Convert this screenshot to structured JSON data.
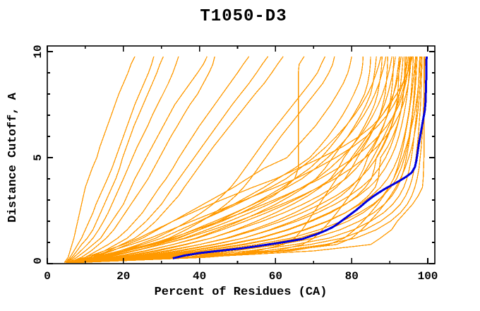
{
  "chart_data": {
    "type": "line",
    "title": "T1050-D3",
    "xlabel": "Percent of Residues (CA)",
    "ylabel": "Distance Cutoff, A",
    "xlim": [
      0,
      101.8
    ],
    "ylim": [
      0,
      10.27
    ],
    "grid": false,
    "legend": "none",
    "x_major_ticks": [
      0,
      20,
      40,
      60,
      80,
      100
    ],
    "x_minor_ticks": [
      10,
      30,
      50,
      70,
      90
    ],
    "y_major_ticks": [
      0,
      5,
      10
    ],
    "y_minor_ticks": [
      1,
      2,
      3,
      4,
      6,
      7,
      8,
      9
    ],
    "colors": {
      "model": "#FF9900",
      "highlight": "#0000DD",
      "frame": "#000000",
      "background": "#FFFFFF"
    },
    "series_semantics": {
      "orange_curves": "individual predicted models: percent of CA residues within distance cutoff",
      "blue_curve": "highlighted model curve"
    },
    "cutoffs": [
      0.05,
      0.3,
      0.6,
      0.9,
      1.2,
      1.6,
      2.0,
      2.4,
      2.8,
      3.2,
      3.6,
      4.0,
      4.5,
      5.0,
      5.5,
      6.0,
      6.5,
      7.0,
      7.5,
      8.0,
      8.5,
      9.0,
      9.4,
      9.77
    ],
    "orange_curves": [
      [
        4.5,
        5.5,
        6,
        6.5,
        7,
        7.5,
        8,
        8.5,
        9,
        9.5,
        10,
        10.8,
        11.8,
        13,
        13.8,
        14.8,
        15.8,
        16.8,
        17.8,
        18.8,
        20,
        21.2,
        22,
        23
      ],
      [
        4.8,
        6,
        7,
        8,
        9,
        10,
        11,
        12,
        12.8,
        13.8,
        14.8,
        15.8,
        17,
        18,
        19,
        20,
        21,
        22,
        23,
        24.2,
        25.4,
        26.6,
        27.4,
        28
      ],
      [
        5,
        6.5,
        7.8,
        9,
        10.5,
        12,
        13,
        14,
        15,
        16,
        17,
        18,
        19,
        19.8,
        20.8,
        21.8,
        22.8,
        24,
        25.2,
        26.4,
        27.6,
        28.8,
        29.6,
        30.5
      ],
      [
        5.2,
        7,
        8.8,
        10.5,
        12,
        13.5,
        14.8,
        16,
        17,
        18,
        19,
        20,
        21.2,
        22.4,
        23.6,
        25,
        26.4,
        27.6,
        29,
        30.4,
        31.8,
        33,
        33.8,
        34.5
      ],
      [
        5.4,
        7.8,
        10,
        12,
        14,
        15.5,
        17,
        18.5,
        20,
        21,
        22,
        23,
        24.5,
        26,
        27.5,
        29,
        30.5,
        32,
        33.5,
        35.5,
        37.5,
        39.5,
        41,
        42
      ],
      [
        5.6,
        9,
        11.5,
        13.5,
        15.5,
        17.5,
        19,
        20.5,
        22,
        23.5,
        25,
        26.5,
        28,
        29.5,
        31,
        32.5,
        34.2,
        35.8,
        37.5,
        39.5,
        41,
        42.5,
        43.5,
        44
      ],
      [
        5.8,
        10,
        13,
        16,
        18.5,
        21,
        23,
        25,
        26.5,
        28,
        29.5,
        31.2,
        33,
        34.6,
        36.4,
        38.2,
        40,
        42,
        44,
        46,
        48,
        50,
        51.5,
        53
      ],
      [
        6,
        11,
        15,
        18,
        21,
        23.5,
        26,
        28,
        30,
        31.5,
        33,
        34.6,
        36.6,
        38.6,
        40.6,
        42.6,
        44.6,
        46.6,
        48.6,
        50.8,
        53,
        55,
        56.5,
        58
      ],
      [
        6,
        12,
        16,
        19.5,
        23,
        26,
        28.5,
        30.5,
        32.5,
        34.5,
        36,
        37.6,
        39.6,
        41.6,
        43.6,
        45.8,
        48,
        50.2,
        52.4,
        54.6,
        57,
        59,
        60.5,
        62
      ],
      [
        6,
        13,
        21,
        28,
        34,
        40,
        46,
        51,
        55.5,
        59.5,
        62.5,
        65,
        66,
        66,
        66,
        66,
        66,
        66,
        66,
        66,
        66,
        66,
        66.2,
        67.5
      ],
      [
        6,
        13,
        19,
        24,
        28.5,
        33,
        37,
        40.5,
        43.5,
        46,
        48.2,
        50,
        52,
        54,
        56,
        58,
        60.2,
        62.4,
        64.6,
        66.8,
        69,
        71,
        72,
        73
      ],
      [
        6.2,
        14,
        21,
        27,
        32,
        36.5,
        40.5,
        44,
        47,
        49.5,
        51.6,
        53.4,
        55.4,
        57.4,
        59.4,
        61.4,
        63.6,
        65.8,
        68,
        70.2,
        72.4,
        74,
        75,
        75.5
      ],
      [
        5.5,
        12,
        17,
        21,
        25,
        29,
        33,
        37,
        41,
        45,
        49,
        52.5,
        57,
        63,
        65.5,
        68,
        70.5,
        72.5,
        74.5,
        76.2,
        77.8,
        79,
        79.6,
        80
      ],
      [
        5.8,
        14,
        20,
        25,
        30,
        35,
        40,
        44.5,
        49,
        53,
        57,
        60.5,
        65,
        69,
        71.5,
        73.8,
        75.8,
        77.6,
        79.2,
        80.6,
        81.8,
        82.6,
        82.9,
        83
      ],
      [
        6,
        16,
        23,
        29,
        34.5,
        40,
        45,
        49.5,
        54,
        58,
        61.8,
        65,
        69,
        72,
        74.4,
        76.6,
        78.6,
        80.4,
        82,
        83.4,
        84.2,
        84.7,
        84.9,
        85
      ],
      [
        6,
        18,
        26,
        33,
        39,
        45,
        50.5,
        55.5,
        60,
        64,
        67.6,
        70.6,
        73,
        75,
        77,
        79,
        80.8,
        82.4,
        83.8,
        85,
        85.6,
        86,
        86.3,
        86.5
      ],
      [
        6.2,
        20,
        29,
        36.5,
        43,
        49.5,
        55,
        60,
        64.5,
        68.5,
        71.8,
        74.4,
        76.5,
        78,
        80,
        81.8,
        83.4,
        84.8,
        86,
        86.8,
        87.3,
        87.7,
        87.9,
        88
      ],
      [
        6.4,
        22,
        32,
        40,
        47,
        54,
        60,
        65,
        69.5,
        73.2,
        76,
        78.2,
        80,
        81.5,
        83.2,
        84.8,
        86.2,
        87.4,
        88.2,
        88.8,
        89.1,
        89.3,
        89.4,
        89.5
      ],
      [
        6.6,
        24,
        35,
        44,
        51.5,
        58.5,
        64.5,
        69.5,
        73.8,
        77.2,
        79.8,
        81.8,
        83.2,
        84.2,
        85.8,
        87.2,
        88.4,
        89.3,
        90,
        90.4,
        90.7,
        90.9,
        91,
        91
      ],
      [
        6.8,
        26,
        38,
        48,
        56,
        63.5,
        69.5,
        74.5,
        78.4,
        81.4,
        83.6,
        85.2,
        86,
        86.5,
        88,
        89.3,
        90.4,
        91.2,
        91.8,
        92.1,
        92.3,
        92.4,
        92.5,
        92.5
      ],
      [
        7,
        28,
        41,
        52,
        60.5,
        68,
        73.8,
        78.4,
        81.8,
        84.4,
        86.2,
        87,
        87.3,
        87.6,
        89.4,
        90.8,
        91.9,
        92.7,
        93.3,
        93.6,
        93.8,
        93.9,
        94,
        94
      ],
      [
        5,
        10,
        15,
        20,
        24,
        28.5,
        33,
        38,
        43,
        48.5,
        54,
        60,
        66,
        72,
        77.5,
        82,
        85.5,
        88,
        89.8,
        91,
        91.8,
        92.4,
        92.7,
        93
      ],
      [
        7,
        30,
        45,
        57,
        66,
        73.5,
        79,
        83,
        86,
        88.2,
        89.8,
        91,
        92,
        92.8,
        93.5,
        94,
        94.5,
        95,
        95.4,
        95.8,
        96.1,
        96.4,
        96.6,
        96.8
      ],
      [
        7.2,
        33,
        49,
        61,
        70,
        77,
        82,
        85.8,
        88.6,
        90.6,
        92,
        93,
        93.8,
        94.4,
        94.9,
        95.3,
        95.7,
        96,
        96.3,
        96.6,
        96.8,
        97,
        97.1,
        97.2
      ],
      [
        7.4,
        36,
        53,
        65,
        74,
        80.5,
        85,
        88.4,
        90.8,
        92.5,
        93.7,
        94.5,
        95.2,
        95.7,
        96.1,
        96.4,
        96.7,
        97,
        97.2,
        97.4,
        97.6,
        97.7,
        97.8,
        97.9
      ],
      [
        7.6,
        39,
        57,
        69,
        77.5,
        83.5,
        87.6,
        90.6,
        92.8,
        94.2,
        95.2,
        95.9,
        96.5,
        96.9,
        97.2,
        97.5,
        97.7,
        97.9,
        98.1,
        98.2,
        98.3,
        98.4,
        98.5,
        98.5
      ],
      [
        7.8,
        42,
        61,
        73,
        81,
        86.5,
        90.2,
        92.8,
        94.6,
        95.8,
        96.6,
        97.2,
        97.7,
        98,
        98.3,
        98.5,
        98.7,
        98.8,
        98.9,
        99,
        99.1,
        99.1,
        99.2,
        99.2
      ],
      [
        7,
        40,
        70,
        85,
        87.5,
        90.5,
        92,
        94,
        96,
        97.5,
        98.6,
        98.8,
        98.9,
        99,
        99,
        99,
        99,
        99,
        99,
        99,
        99,
        99,
        99,
        99
      ],
      [
        6.5,
        25,
        37,
        47,
        55.5,
        63,
        69,
        74,
        78.3,
        81.8,
        84.6,
        86.8,
        88.8,
        90.3,
        91.5,
        92.4,
        93.1,
        93.7,
        94.2,
        94.6,
        94.9,
        95.1,
        95.2,
        95.3
      ],
      [
        6.7,
        27,
        40,
        51,
        60,
        67.5,
        73.5,
        78.3,
        82.2,
        85.2,
        87.6,
        89.4,
        91,
        92.2,
        93.1,
        93.8,
        94.4,
        94.9,
        95.3,
        95.6,
        95.8,
        96,
        96.1,
        96.2
      ],
      [
        6.9,
        29,
        43,
        55,
        64,
        71.5,
        77.4,
        82,
        85.6,
        88.3,
        90.3,
        91.8,
        93,
        93.9,
        94.6,
        95.1,
        95.5,
        95.9,
        96.2,
        96.4,
        96.6,
        96.7,
        96.8,
        96.9
      ],
      [
        6.3,
        23,
        34,
        43.5,
        51.5,
        59,
        65.5,
        71,
        75.6,
        79.4,
        82.5,
        85,
        87.2,
        88.9,
        90.2,
        91.2,
        92,
        92.7,
        93.2,
        93.6,
        93.9,
        94.1,
        94.3,
        94.4
      ],
      [
        6.1,
        21,
        31,
        40,
        47.5,
        55,
        61.5,
        67,
        71.8,
        75.9,
        79.3,
        82.1,
        84.6,
        86.6,
        88.2,
        89.5,
        90.5,
        91.3,
        92,
        92.5,
        92.9,
        93.2,
        93.4,
        93.5
      ],
      [
        5.9,
        19,
        28,
        36,
        43,
        50,
        56.5,
        62.2,
        67.2,
        71.5,
        75.2,
        78.4,
        81.2,
        83.5,
        85.4,
        87,
        88.3,
        89.4,
        90.3,
        91,
        91.6,
        92,
        92.3,
        92.5
      ],
      [
        5.7,
        17,
        25.5,
        33,
        39.5,
        46,
        52,
        57.6,
        62.7,
        67.2,
        71.2,
        74.7,
        77.9,
        80.5,
        82.7,
        84.6,
        86.2,
        87.5,
        88.6,
        89.5,
        90.2,
        90.8,
        91.2,
        91.5
      ],
      [
        5.5,
        15,
        23,
        30,
        36,
        42,
        47.8,
        53.2,
        58.2,
        62.8,
        67,
        70.8,
        74.3,
        77.3,
        79.9,
        82.1,
        84,
        85.6,
        87,
        88.1,
        89,
        89.7,
        90.2,
        90.6
      ],
      [
        5.3,
        13.5,
        21,
        27.5,
        33,
        38.5,
        44,
        49.2,
        54.2,
        58.8,
        63,
        66.9,
        70.5,
        73.7,
        76.6,
        79.1,
        81.3,
        83.2,
        84.8,
        86.1,
        87.2,
        88,
        88.6,
        89
      ],
      [
        5.1,
        12,
        19,
        25,
        30,
        35,
        40,
        45,
        49.8,
        54.4,
        58.7,
        62.7,
        66.5,
        70,
        73.2,
        76,
        78.5,
        80.7,
        82.6,
        84.2,
        85.5,
        86.5,
        87.2,
        87.7
      ],
      [
        6,
        30,
        55,
        62,
        65,
        67,
        68.5,
        70,
        71.5,
        73,
        74.5,
        76,
        78,
        80,
        82,
        84,
        86,
        88,
        90,
        91.8,
        93.4,
        94.6,
        95.4,
        96
      ],
      [
        6,
        35,
        60,
        67,
        70,
        72.3,
        74.3,
        76.1,
        77.8,
        79.4,
        80.9,
        82.3,
        84,
        85.6,
        87.1,
        88.5,
        89.8,
        91,
        92.1,
        93.1,
        94,
        94.7,
        95.2,
        95.6
      ],
      [
        6.5,
        38,
        64,
        74,
        78,
        80.8,
        83,
        85,
        86.8,
        88.4,
        89.8,
        91,
        92.3,
        93.4,
        94.3,
        95.1,
        95.8,
        96.4,
        96.9,
        97.3,
        97.6,
        97.8,
        97.9,
        98
      ],
      [
        6.8,
        36,
        62,
        76,
        80,
        82.6,
        84.8,
        86.8,
        88.6,
        90.2,
        91.6,
        92.8,
        94,
        95,
        95.8,
        96.4,
        96.9,
        97.3,
        97.6,
        97.8,
        98,
        98.1,
        98.2,
        98.3
      ],
      [
        5.2,
        11,
        16.5,
        22,
        27,
        32.5,
        38,
        43.5,
        49,
        54.5,
        60,
        65.2,
        70.8,
        75.8,
        80.2,
        83.9,
        86.9,
        89.3,
        91.1,
        92.5,
        93.5,
        94.2,
        94.6,
        94.9
      ],
      [
        5.4,
        13,
        20,
        26.5,
        32.5,
        39,
        45.2,
        51.2,
        56.9,
        62.2,
        67.1,
        71.6,
        76.4,
        80.6,
        84.1,
        87,
        89.3,
        91.1,
        92.5,
        93.5,
        94.2,
        94.7,
        95,
        95.2
      ],
      [
        5.6,
        14.5,
        22.5,
        30,
        36.5,
        43.5,
        50,
        56,
        61.6,
        66.7,
        71.4,
        75.6,
        79.9,
        83.6,
        86.6,
        89,
        90.9,
        92.4,
        93.5,
        94.3,
        94.9,
        95.3,
        95.5,
        95.7
      ]
    ],
    "blue_curve": [
      [
        33,
        0.25
      ],
      [
        36,
        0.38
      ],
      [
        40,
        0.5
      ],
      [
        44,
        0.58
      ],
      [
        48,
        0.66
      ],
      [
        51,
        0.72
      ],
      [
        55,
        0.82
      ],
      [
        58,
        0.9
      ],
      [
        61,
        0.98
      ],
      [
        64,
        1.07
      ],
      [
        67,
        1.16
      ],
      [
        69,
        1.28
      ],
      [
        71,
        1.4
      ],
      [
        73,
        1.55
      ],
      [
        75,
        1.72
      ],
      [
        76.5,
        1.9
      ],
      [
        78,
        2.1
      ],
      [
        79.5,
        2.3
      ],
      [
        81,
        2.5
      ],
      [
        82.5,
        2.72
      ],
      [
        84,
        2.95
      ],
      [
        85.5,
        3.15
      ],
      [
        87,
        3.33
      ],
      [
        88.5,
        3.5
      ],
      [
        90,
        3.65
      ],
      [
        91.5,
        3.8
      ],
      [
        93,
        3.95
      ],
      [
        94.5,
        4.12
      ],
      [
        95.8,
        4.3
      ],
      [
        96.6,
        4.55
      ],
      [
        97,
        4.85
      ],
      [
        97.3,
        5.2
      ],
      [
        97.6,
        5.6
      ],
      [
        98,
        6.0
      ],
      [
        98.4,
        6.4
      ],
      [
        98.8,
        6.8
      ],
      [
        99.2,
        7.2
      ],
      [
        99.4,
        7.6
      ],
      [
        99.5,
        8.1
      ],
      [
        99.6,
        8.7
      ],
      [
        99.6,
        9.3
      ],
      [
        99.7,
        9.77
      ]
    ]
  }
}
